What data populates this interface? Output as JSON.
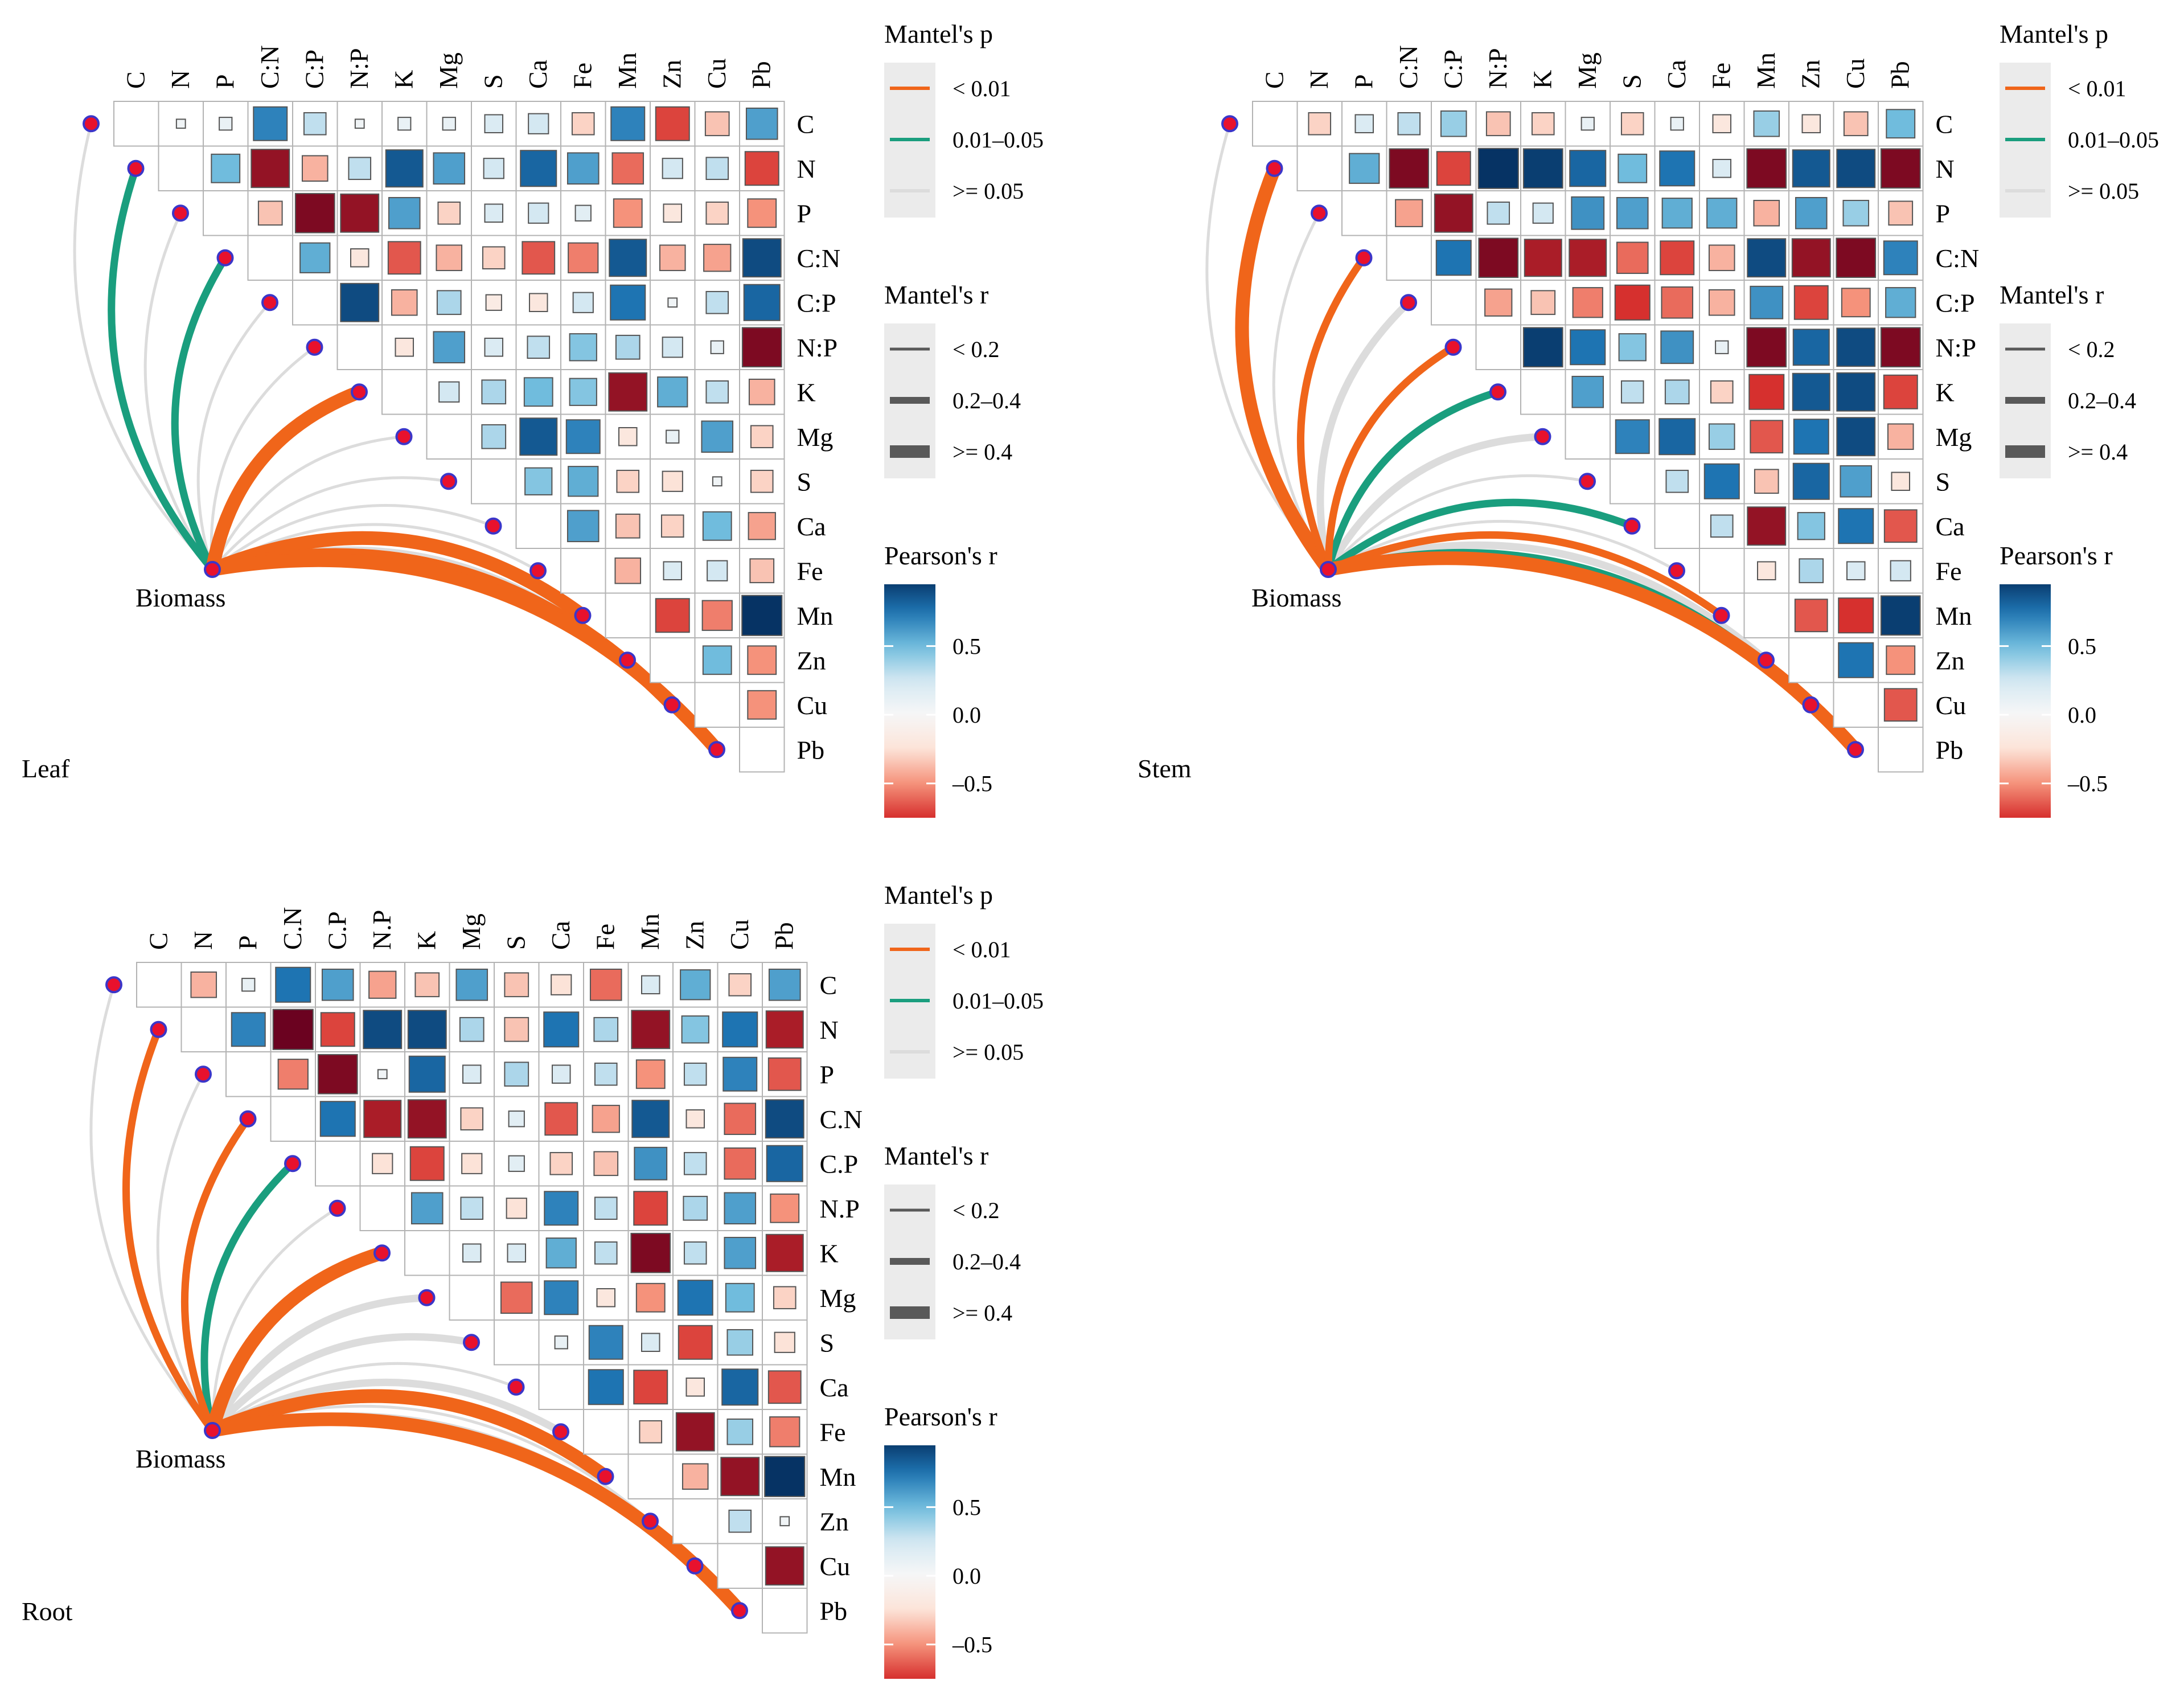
{
  "chart_data": {
    "type": "heatmap",
    "variables_by_panel": [
      [
        "C",
        "N",
        "P",
        "C:N",
        "C:P",
        "N:P",
        "K",
        "Mg",
        "S",
        "Ca",
        "Fe",
        "Mn",
        "Zn",
        "Cu",
        "Pb"
      ],
      [
        "C",
        "N",
        "P",
        "C:N",
        "C:P",
        "N:P",
        "K",
        "Mg",
        "S",
        "Ca",
        "Fe",
        "Mn",
        "Zn",
        "Cu",
        "Pb"
      ],
      [
        "C",
        "N",
        "P",
        "C.N",
        "C.P",
        "N.P",
        "K",
        "Mg",
        "S",
        "Ca",
        "Fe",
        "Mn",
        "Zn",
        "Cu",
        "Pb"
      ]
    ],
    "biomass_label": "Biomass",
    "panels": [
      {
        "name": "Leaf",
        "matrix": [
          [
            0.05,
            0.1,
            0.7,
            0.3,
            0.05,
            0.1,
            0.1,
            0.2,
            0.25,
            -0.3,
            0.7,
            -0.7,
            -0.35,
            0.6
          ],
          [
            0.5,
            -0.9,
            -0.4,
            0.3,
            0.85,
            0.6,
            0.25,
            0.8,
            0.6,
            -0.6,
            0.25,
            0.3,
            -0.7
          ],
          [
            -0.35,
            -0.95,
            -0.9,
            0.6,
            -0.3,
            0.2,
            0.25,
            0.15,
            -0.5,
            -0.2,
            -0.3,
            -0.5
          ],
          [
            0.55,
            -0.2,
            -0.65,
            -0.4,
            -0.3,
            -0.65,
            -0.55,
            0.85,
            -0.4,
            -0.45,
            0.9
          ],
          [
            0.9,
            -0.4,
            0.35,
            -0.15,
            -0.2,
            0.25,
            0.75,
            0.05,
            0.3,
            0.8
          ],
          [
            -0.2,
            0.6,
            0.2,
            0.3,
            0.45,
            0.35,
            0.25,
            0.1,
            -0.95
          ],
          [
            0.25,
            0.35,
            0.5,
            0.45,
            -0.9,
            0.55,
            0.3,
            -0.4
          ],
          [
            0.35,
            0.85,
            0.7,
            -0.2,
            0.1,
            0.6,
            -0.3
          ],
          [
            0.45,
            0.55,
            -0.3,
            -0.25,
            0.05,
            -0.3
          ],
          [
            0.6,
            -0.35,
            -0.3,
            0.5,
            -0.45
          ],
          [
            -0.4,
            0.2,
            0.25,
            -0.35
          ],
          [
            -0.7,
            -0.55,
            0.99
          ],
          [
            0.5,
            -0.5
          ],
          [
            -0.5
          ]
        ],
        "mantel": [
          {
            "var": "C",
            "p": ">= 0.05",
            "r": "< 0.2"
          },
          {
            "var": "N",
            "p": "0.01–0.05",
            "r": "0.2–0.4"
          },
          {
            "var": "P",
            "p": ">= 0.05",
            "r": "< 0.2"
          },
          {
            "var": "C:N",
            "p": "0.01–0.05",
            "r": "0.2–0.4"
          },
          {
            "var": "C:P",
            "p": ">= 0.05",
            "r": "< 0.2"
          },
          {
            "var": "N:P",
            "p": ">= 0.05",
            "r": "< 0.2"
          },
          {
            "var": "K",
            "p": "< 0.01",
            "r": ">= 0.4"
          },
          {
            "var": "Mg",
            "p": ">= 0.05",
            "r": "< 0.2"
          },
          {
            "var": "S",
            "p": ">= 0.05",
            "r": "< 0.2"
          },
          {
            "var": "Ca",
            "p": ">= 0.05",
            "r": "< 0.2"
          },
          {
            "var": "Fe",
            "p": ">= 0.05",
            "r": "< 0.2"
          },
          {
            "var": "Mn",
            "p": "< 0.01",
            "r": ">= 0.4"
          },
          {
            "var": "Zn",
            "p": ">= 0.05",
            "r": "< 0.2"
          },
          {
            "var": "Cu",
            "p": "< 0.01",
            "r": ">= 0.4"
          },
          {
            "var": "Pb",
            "p": "< 0.01",
            "r": ">= 0.4"
          }
        ]
      },
      {
        "name": "Stem",
        "matrix": [
          [
            -0.3,
            0.2,
            0.3,
            0.4,
            -0.35,
            -0.3,
            0.1,
            -0.3,
            0.1,
            -0.2,
            0.4,
            -0.2,
            -0.35,
            0.5
          ],
          [
            0.55,
            -0.95,
            -0.7,
            0.99,
            0.95,
            0.8,
            0.5,
            0.75,
            0.2,
            -0.95,
            0.85,
            0.9,
            -0.95
          ],
          [
            -0.45,
            -0.9,
            0.3,
            0.25,
            0.65,
            0.6,
            0.55,
            0.55,
            -0.4,
            0.6,
            0.4,
            -0.35
          ],
          [
            0.75,
            -0.95,
            -0.85,
            -0.85,
            -0.6,
            -0.7,
            -0.4,
            0.9,
            -0.9,
            -0.95,
            0.7
          ],
          [
            -0.45,
            -0.35,
            -0.55,
            -0.75,
            -0.6,
            -0.4,
            0.65,
            -0.7,
            -0.5,
            0.55
          ],
          [
            0.95,
            0.75,
            0.45,
            0.65,
            0.1,
            -0.95,
            0.8,
            0.9,
            -0.95
          ],
          [
            0.6,
            0.3,
            0.35,
            -0.3,
            -0.75,
            0.85,
            0.9,
            -0.7
          ],
          [
            0.7,
            0.8,
            0.4,
            -0.65,
            0.75,
            0.9,
            -0.4
          ],
          [
            0.3,
            0.75,
            -0.35,
            0.8,
            0.6,
            -0.2
          ],
          [
            0.3,
            -0.9,
            0.45,
            0.75,
            -0.65
          ],
          [
            -0.2,
            0.35,
            0.2,
            0.25
          ],
          [
            -0.65,
            -0.75,
            0.95
          ],
          [
            0.75,
            -0.5
          ],
          [
            -0.65
          ]
        ],
        "mantel": [
          {
            "var": "C",
            "p": ">= 0.05",
            "r": "< 0.2"
          },
          {
            "var": "N",
            "p": "< 0.01",
            "r": ">= 0.4"
          },
          {
            "var": "P",
            "p": ">= 0.05",
            "r": "< 0.2"
          },
          {
            "var": "C:N",
            "p": "< 0.01",
            "r": "0.2–0.4"
          },
          {
            "var": "C:P",
            "p": ">= 0.05",
            "r": "0.2–0.4"
          },
          {
            "var": "N:P",
            "p": "< 0.01",
            "r": "0.2–0.4"
          },
          {
            "var": "K",
            "p": "0.01–0.05",
            "r": "0.2–0.4"
          },
          {
            "var": "Mg",
            "p": ">= 0.05",
            "r": "0.2–0.4"
          },
          {
            "var": "S",
            "p": ">= 0.05",
            "r": "< 0.2"
          },
          {
            "var": "Ca",
            "p": "0.01–0.05",
            "r": "0.2–0.4"
          },
          {
            "var": "Fe",
            "p": ">= 0.05",
            "r": "< 0.2"
          },
          {
            "var": "Mn",
            "p": "< 0.01",
            "r": "0.2–0.4"
          },
          {
            "var": "Zn",
            "p": ">= 0.05",
            "r": "0.2–0.4"
          },
          {
            "var": "Cu",
            "p": "0.01–0.05",
            "r": "0.2–0.4"
          },
          {
            "var": "Pb",
            "p": "< 0.01",
            "r": ">= 0.4"
          }
        ]
      },
      {
        "name": "Root",
        "matrix": [
          [
            -0.4,
            0.1,
            0.75,
            0.6,
            -0.45,
            -0.35,
            0.6,
            -0.35,
            -0.25,
            -0.6,
            0.2,
            0.55,
            -0.3,
            0.6
          ],
          [
            0.7,
            -0.99,
            -0.7,
            0.9,
            0.9,
            0.35,
            -0.35,
            0.75,
            0.35,
            -0.9,
            0.45,
            0.75,
            -0.85
          ],
          [
            -0.55,
            -0.95,
            0.05,
            0.8,
            0.2,
            0.35,
            0.2,
            0.3,
            -0.5,
            0.3,
            0.7,
            -0.65
          ],
          [
            0.75,
            -0.85,
            -0.9,
            -0.3,
            0.15,
            -0.65,
            -0.45,
            0.85,
            -0.2,
            -0.6,
            0.9
          ],
          [
            -0.25,
            -0.7,
            -0.25,
            0.15,
            -0.3,
            -0.35,
            0.65,
            0.3,
            -0.6,
            0.8
          ],
          [
            0.6,
            0.3,
            -0.25,
            0.7,
            0.3,
            -0.7,
            0.35,
            0.6,
            -0.5
          ],
          [
            0.2,
            0.2,
            0.55,
            0.3,
            -0.95,
            0.3,
            0.6,
            -0.85
          ],
          [
            -0.6,
            0.7,
            -0.2,
            -0.5,
            0.75,
            0.5,
            -0.3
          ],
          [
            0.1,
            0.7,
            0.2,
            -0.7,
            0.4,
            -0.25
          ],
          [
            0.75,
            -0.7,
            -0.2,
            0.8,
            -0.65
          ],
          [
            -0.3,
            -0.9,
            0.4,
            -0.55
          ],
          [
            -0.4,
            -0.9,
            0.99
          ],
          [
            0.3,
            0.05
          ],
          [
            -0.9
          ]
        ],
        "mantel": [
          {
            "var": "C",
            "p": ">= 0.05",
            "r": "< 0.2"
          },
          {
            "var": "N",
            "p": "< 0.01",
            "r": "0.2–0.4"
          },
          {
            "var": "P",
            "p": ">= 0.05",
            "r": "< 0.2"
          },
          {
            "var": "C.N",
            "p": "< 0.01",
            "r": "0.2–0.4"
          },
          {
            "var": "C.P",
            "p": "0.01–0.05",
            "r": "0.2–0.4"
          },
          {
            "var": "N.P",
            "p": ">= 0.05",
            "r": "< 0.2"
          },
          {
            "var": "K",
            "p": "< 0.01",
            "r": ">= 0.4"
          },
          {
            "var": "Mg",
            "p": ">= 0.05",
            "r": "0.2–0.4"
          },
          {
            "var": "S",
            "p": ">= 0.05",
            "r": "0.2–0.4"
          },
          {
            "var": "Ca",
            "p": ">= 0.05",
            "r": "< 0.2"
          },
          {
            "var": "Fe",
            "p": ">= 0.05",
            "r": "0.2–0.4"
          },
          {
            "var": "Mn",
            "p": "< 0.01",
            "r": ">= 0.4"
          },
          {
            "var": "Zn",
            "p": ">= 0.05",
            "r": "< 0.2"
          },
          {
            "var": "Cu",
            "p": ">= 0.05",
            "r": "< 0.2"
          },
          {
            "var": "Pb",
            "p": "< 0.01",
            "r": ">= 0.4"
          }
        ]
      }
    ],
    "legend": {
      "mantel_p_title": "Mantel's p",
      "mantel_p_levels": [
        "< 0.01",
        "0.01–0.05",
        ">= 0.05"
      ],
      "mantel_p_colors": [
        "#F0651A",
        "#1A9E7E",
        "#DCDCDC"
      ],
      "mantel_r_title": "Mantel's r",
      "mantel_r_levels": [
        "< 0.2",
        "0.2–0.4",
        ">= 0.4"
      ],
      "pearson_title": "Pearson's r",
      "pearson_ticks": [
        "0.5",
        "0.0",
        "–0.5"
      ],
      "pearson_tick_values": [
        0.5,
        0.0,
        -0.5
      ],
      "pearson_range": [
        -0.75,
        0.95
      ],
      "colorscale": [
        "#67001F",
        "#D6302E",
        "#F5927B",
        "#FCE3D8",
        "#F7F7F7",
        "#D4E8F2",
        "#70BCDD",
        "#1E74B2",
        "#053061"
      ]
    }
  }
}
